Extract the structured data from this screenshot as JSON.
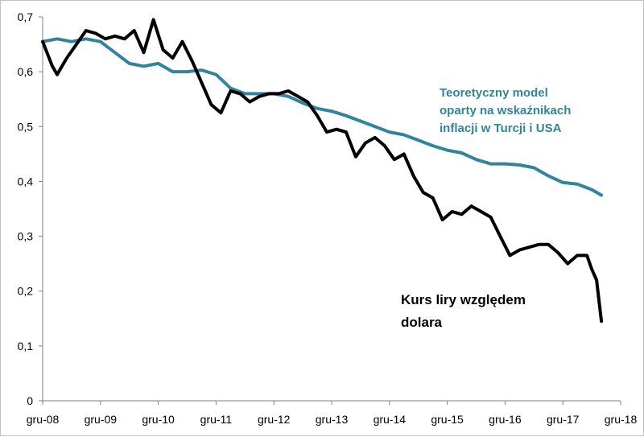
{
  "chart_data": {
    "type": "line",
    "title": "",
    "xlabel": "",
    "ylabel": "",
    "x_tick_labels": [
      "gru-08",
      "gru-09",
      "gru-10",
      "gru-11",
      "gru-12",
      "gru-13",
      "gru-14",
      "gru-15",
      "gru-16",
      "gru-17",
      "gru-18"
    ],
    "y_tick_labels": [
      "0",
      "0,1",
      "0,2",
      "0,3",
      "0,4",
      "0,5",
      "0,6",
      "0,7"
    ],
    "ylim": [
      0,
      0.7
    ],
    "xlim": [
      "2008-12",
      "2018-12"
    ],
    "grid": false,
    "legend": "none (direct annotations)",
    "annotations": {
      "model": [
        "Teoretyczny model",
        "oparty na wskaźnikach",
        "inflacji w Turcji i USA"
      ],
      "kurs": [
        "Kurs liry względem",
        "dolara"
      ]
    },
    "series": [
      {
        "label_ref": "model",
        "color": "#31849b",
        "x": [
          "2008-12",
          "2009-03",
          "2009-06",
          "2009-09",
          "2009-12",
          "2010-03",
          "2010-06",
          "2010-09",
          "2010-12",
          "2011-03",
          "2011-06",
          "2011-09",
          "2011-12",
          "2012-03",
          "2012-06",
          "2012-09",
          "2012-12",
          "2013-03",
          "2013-06",
          "2013-09",
          "2013-12",
          "2014-03",
          "2014-06",
          "2014-09",
          "2014-12",
          "2015-03",
          "2015-06",
          "2015-09",
          "2015-12",
          "2016-03",
          "2016-06",
          "2016-09",
          "2016-12",
          "2017-03",
          "2017-06",
          "2017-09",
          "2017-12",
          "2018-03",
          "2018-06",
          "2018-08"
        ],
        "values": [
          0.655,
          0.66,
          0.655,
          0.66,
          0.655,
          0.635,
          0.615,
          0.61,
          0.615,
          0.6,
          0.6,
          0.603,
          0.595,
          0.57,
          0.56,
          0.56,
          0.56,
          0.555,
          0.543,
          0.533,
          0.528,
          0.52,
          0.51,
          0.5,
          0.49,
          0.485,
          0.475,
          0.465,
          0.457,
          0.452,
          0.44,
          0.432,
          0.432,
          0.43,
          0.425,
          0.41,
          0.398,
          0.395,
          0.385,
          0.375
        ]
      },
      {
        "label_ref": "kurs",
        "color": "#000000",
        "x": [
          "2008-12",
          "2009-02",
          "2009-03",
          "2009-05",
          "2009-07",
          "2009-09",
          "2009-11",
          "2010-01",
          "2010-03",
          "2010-05",
          "2010-07",
          "2010-09",
          "2010-11",
          "2011-01",
          "2011-03",
          "2011-05",
          "2011-07",
          "2011-09",
          "2011-11",
          "2012-01",
          "2012-03",
          "2012-05",
          "2012-07",
          "2012-09",
          "2012-11",
          "2013-01",
          "2013-03",
          "2013-05",
          "2013-07",
          "2013-09",
          "2013-11",
          "2014-01",
          "2014-03",
          "2014-05",
          "2014-07",
          "2014-09",
          "2014-11",
          "2015-01",
          "2015-03",
          "2015-05",
          "2015-07",
          "2015-09",
          "2015-11",
          "2016-01",
          "2016-03",
          "2016-05",
          "2016-07",
          "2016-09",
          "2016-11",
          "2017-01",
          "2017-03",
          "2017-05",
          "2017-07",
          "2017-09",
          "2017-11",
          "2018-01",
          "2018-03",
          "2018-05",
          "2018-06",
          "2018-07",
          "2018-08"
        ],
        "values": [
          0.655,
          0.61,
          0.595,
          0.625,
          0.65,
          0.675,
          0.67,
          0.66,
          0.665,
          0.66,
          0.675,
          0.635,
          0.695,
          0.64,
          0.625,
          0.655,
          0.62,
          0.58,
          0.54,
          0.525,
          0.565,
          0.56,
          0.545,
          0.555,
          0.56,
          0.56,
          0.565,
          0.555,
          0.545,
          0.52,
          0.49,
          0.495,
          0.49,
          0.445,
          0.47,
          0.48,
          0.465,
          0.44,
          0.45,
          0.41,
          0.38,
          0.37,
          0.33,
          0.345,
          0.34,
          0.355,
          0.345,
          0.335,
          0.3,
          0.265,
          0.275,
          0.28,
          0.285,
          0.285,
          0.27,
          0.25,
          0.265,
          0.265,
          0.24,
          0.22,
          0.145
        ]
      }
    ]
  }
}
